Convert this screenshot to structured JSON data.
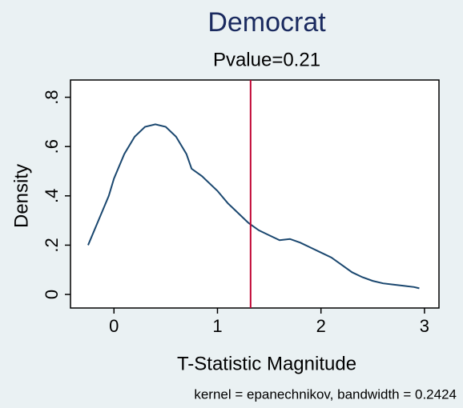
{
  "chart_data": {
    "type": "line",
    "title": "Democrat",
    "subtitle": "Pvalue=0.21",
    "xlabel": "T-Statistic Magnitude",
    "ylabel": "Density",
    "note": "kernel = epanechnikov, bandwidth = 0.2424",
    "x": [
      -0.25,
      -0.15,
      -0.05,
      0,
      0.1,
      0.2,
      0.3,
      0.4,
      0.5,
      0.6,
      0.7,
      0.75,
      0.85,
      1.0,
      1.1,
      1.2,
      1.3,
      1.4,
      1.5,
      1.6,
      1.7,
      1.8,
      1.9,
      2.0,
      2.1,
      2.2,
      2.3,
      2.4,
      2.5,
      2.6,
      2.7,
      2.8,
      2.9,
      2.95
    ],
    "values": [
      0.2,
      0.3,
      0.4,
      0.47,
      0.57,
      0.64,
      0.68,
      0.69,
      0.68,
      0.64,
      0.57,
      0.51,
      0.48,
      0.42,
      0.37,
      0.33,
      0.29,
      0.26,
      0.24,
      0.22,
      0.225,
      0.21,
      0.19,
      0.17,
      0.15,
      0.12,
      0.09,
      0.07,
      0.055,
      0.045,
      0.04,
      0.035,
      0.03,
      0.025
    ],
    "color": "#1a476f",
    "reference_line": 1.32,
    "reference_color": "#c10534",
    "xlim": [
      -0.42,
      3.14
    ],
    "ylim": [
      -0.055,
      0.87
    ],
    "xticks": [
      0,
      1,
      2,
      3
    ],
    "yticks": [
      0,
      {
        "value": 0.2,
        "label": ".2"
      },
      {
        "value": 0.4,
        "label": ".4"
      },
      {
        "value": 0.6,
        "label": ".6"
      },
      {
        "value": 0.8,
        "label": ".8"
      }
    ]
  }
}
